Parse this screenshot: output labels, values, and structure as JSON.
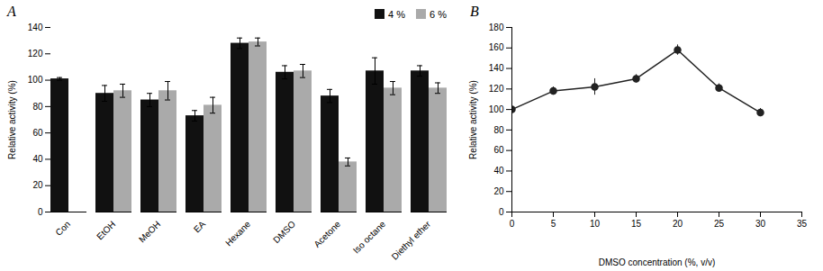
{
  "chart_data": [
    {
      "type": "bar",
      "title": "A",
      "categories": [
        "Con",
        "EtOH",
        "MeOH",
        "EA",
        "Hexane",
        "DMSO",
        "Acetone",
        "Iso octane",
        "Diethyl ether"
      ],
      "series": [
        {
          "name": "4 %",
          "color": "#111111",
          "values": [
            101,
            90,
            85,
            73,
            128,
            106,
            88,
            107,
            107
          ],
          "errors": [
            1,
            6,
            5,
            4,
            4,
            5,
            5,
            10,
            4
          ]
        },
        {
          "name": "6 %",
          "color": "#aaaaaa",
          "values": [
            null,
            92,
            92,
            81,
            129,
            107,
            38,
            94,
            94
          ],
          "errors": [
            null,
            5,
            7,
            6,
            3,
            5,
            3,
            5,
            4
          ]
        }
      ],
      "ylabel": "Relative activity (%)",
      "ylim": [
        0,
        140
      ],
      "yticks": [
        0,
        20,
        40,
        60,
        80,
        100,
        120,
        140
      ],
      "legend": "upper right"
    },
    {
      "type": "line",
      "title": "B",
      "x": [
        0,
        5,
        10,
        15,
        20,
        25,
        30
      ],
      "values": [
        100,
        118,
        122,
        130,
        158,
        121,
        97
      ],
      "errors": [
        1,
        4,
        8,
        4,
        5,
        4,
        4
      ],
      "color": "#222222",
      "marker": "circle",
      "xlabel": "DMSO concentration (%, v/v)",
      "ylabel": "Relative activity (%)",
      "xlim": [
        0,
        35
      ],
      "xticks": [
        0,
        5,
        10,
        15,
        20,
        25,
        30,
        35
      ],
      "ylim": [
        0,
        180
      ],
      "yticks": [
        0,
        20,
        40,
        60,
        80,
        100,
        120,
        140,
        160,
        180
      ]
    }
  ]
}
